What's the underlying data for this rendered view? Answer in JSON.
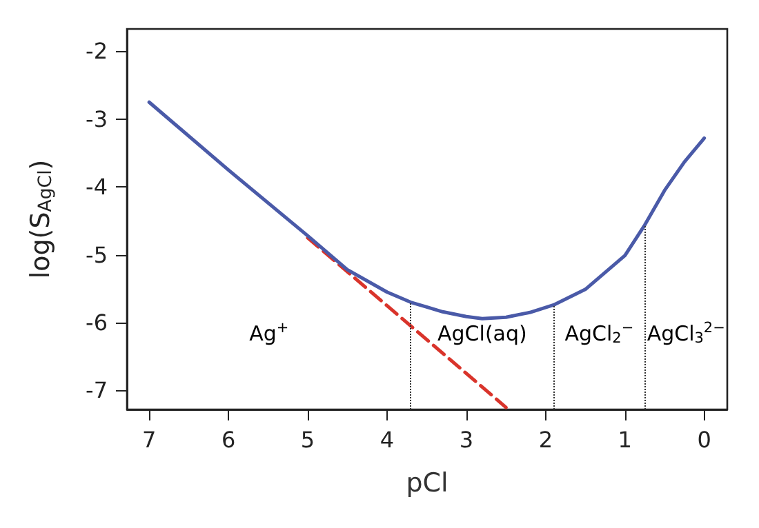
{
  "chart_data": {
    "type": "line",
    "xlabel": "pCl",
    "ylabel": "log(S$_{AgCl}$)",
    "xlim": [
      7.28,
      -0.29
    ],
    "xticks": [
      7,
      6,
      5,
      4,
      3,
      2,
      1,
      0
    ],
    "ylim": [
      -7.28,
      -1.67
    ],
    "yticks": [
      -7,
      -6,
      -5,
      -4,
      -3,
      -2
    ],
    "grid": false,
    "marker": "none",
    "series": [
      {
        "color": "#4a5aa8",
        "line_style": "solid",
        "x": [
          7,
          6,
          5,
          4.5,
          4,
          3.7,
          3.5,
          3.3,
          3,
          2.8,
          2.5,
          2.2,
          1.9,
          1.5,
          1,
          0.75,
          0.5,
          0.25,
          0
        ],
        "values": [
          -2.75,
          -3.75,
          -4.72,
          -5.22,
          -5.55,
          -5.7,
          -5.77,
          -5.84,
          -5.91,
          -5.94,
          -5.92,
          -5.85,
          -5.74,
          -5.51,
          -5.01,
          -4.56,
          -4.05,
          -3.63,
          -3.28
        ]
      },
      {
        "color": "#d9342b",
        "line_style": "dashed",
        "x": [
          5,
          2.5
        ],
        "values": [
          -4.75,
          -7.25
        ]
      }
    ],
    "ref_lines": [
      {
        "axis": "x",
        "value": 3.7,
        "line_style": "dotted",
        "color": "#333333"
      },
      {
        "axis": "x",
        "value": 1.9,
        "line_style": "dotted",
        "color": "#333333"
      },
      {
        "axis": "x",
        "value": 0.75,
        "line_style": "dotted",
        "color": "#333333"
      }
    ],
    "annotations": [
      "Ag$^{+}$",
      "AgCl(aq)",
      "AgCl$_{2}$$^{−}$",
      "AgCl$_{3}$$^{2−}$"
    ]
  }
}
